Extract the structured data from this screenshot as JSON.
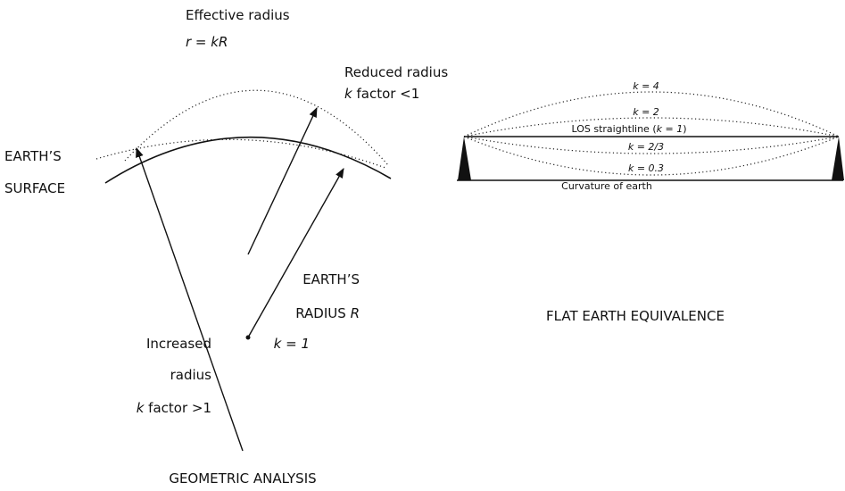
{
  "left_panel": {
    "effective_radius": {
      "title": "Effective radius",
      "formula": "r = kR"
    },
    "reduced_radius": {
      "title": "Reduced radius",
      "var": "k",
      "condition": "factor <1"
    },
    "surface_label": [
      "EARTH’S",
      "SURFACE"
    ],
    "earth_radius": {
      "line1": "EARTH’S",
      "line2": "RADIUS",
      "var": "R",
      "condition": "k = 1"
    },
    "increased_radius": {
      "line1": "Increased",
      "line2": "radius",
      "var": "k",
      "condition": "factor >1"
    },
    "caption": "GEOMETRIC ANALYSIS"
  },
  "right_panel": {
    "curves": [
      "k = 4",
      "k = 2",
      "k = 2/3",
      "k = 0.3"
    ],
    "los": {
      "before": "LOS straightline (",
      "var": "k = 1",
      "after": ")"
    },
    "baseline": "Curvature of earth",
    "caption": "FLAT EARTH EQUIVALENCE"
  }
}
